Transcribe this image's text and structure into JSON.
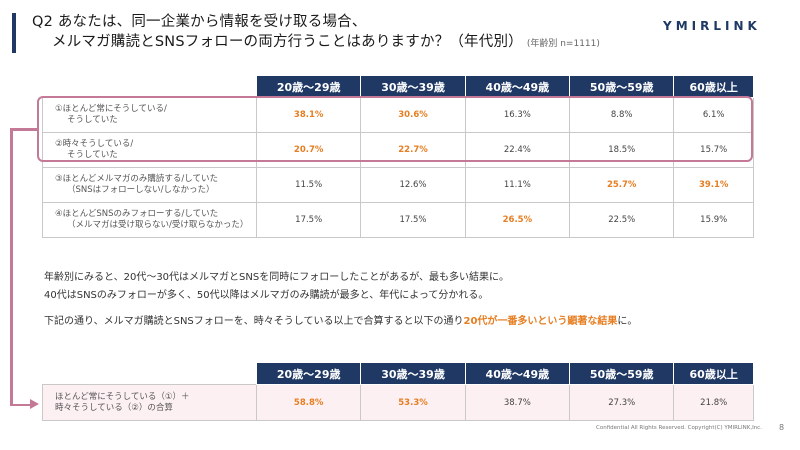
{
  "title": {
    "line1": "Q2 あなたは、同一企業から情報を受け取る場合、",
    "line2": "メルマガ購読とSNSフォローの両方行うことはありますか？（年代別）",
    "note": "(年齢別 n=1111)"
  },
  "logo": "YMIRLINK",
  "age_groups": [
    "20歳～29歳",
    "30歳～39歳",
    "40歳～49歳",
    "50歳～59歳",
    "60歳以上"
  ],
  "table1": {
    "rows": [
      {
        "label1": "①ほとんど常にそうしている/",
        "label2": "そうしていた",
        "values": [
          "38.1%",
          "30.6%",
          "16.3%",
          "8.8%",
          "6.1%"
        ],
        "highlight": [
          true,
          true,
          false,
          false,
          false
        ]
      },
      {
        "label1": "②時々そうしている/",
        "label2": "そうしていた",
        "values": [
          "20.7%",
          "22.7%",
          "22.4%",
          "18.5%",
          "15.7%"
        ],
        "highlight": [
          true,
          true,
          false,
          false,
          false
        ]
      },
      {
        "label1": "③ほとんどメルマガのみ購読する/していた",
        "label2": "（SNSはフォローしない/しなかった）",
        "values": [
          "11.5%",
          "12.6%",
          "11.1%",
          "25.7%",
          "39.1%"
        ],
        "highlight": [
          false,
          false,
          false,
          true,
          true
        ]
      },
      {
        "label1": "④ほとんどSNSのみフォローする/していた",
        "label2": "（メルマガは受け取らない/受け取らなかった）",
        "values": [
          "17.5%",
          "17.5%",
          "26.5%",
          "22.5%",
          "15.9%"
        ],
        "highlight": [
          false,
          false,
          true,
          false,
          false
        ]
      }
    ]
  },
  "paragraphs": {
    "p1": "年齢別にみると、20代～30代はメルマガとSNSを同時にフォローしたことがあるが、最も多い結果に。",
    "p2": "40代はSNSのみフォローが多く、50代以降はメルマガのみ購読が最多と、年代によって分かれる。",
    "p3_pre": "下記の通り、メルマガ購読とSNSフォローを、時々そうしている以上で合算すると以下の通り",
    "p3_em": "20代が一番多いという顕著な結果",
    "p3_post": "に。"
  },
  "table2": {
    "label1": "ほとんど常にそうしている（①）＋",
    "label2": "時々そうしている（②）の合算",
    "values": [
      "58.8%",
      "53.3%",
      "38.7%",
      "27.3%",
      "21.8%"
    ],
    "highlight": [
      true,
      true,
      false,
      false,
      false
    ]
  },
  "footer": "Confidential All Rights Reserved. Copyright(C) YMIRLINK,Inc.",
  "page_number": "8",
  "colors": {
    "header_navy": "#1f3864",
    "highlight_orange": "#e67e22",
    "frame_pink": "#c47a97"
  }
}
